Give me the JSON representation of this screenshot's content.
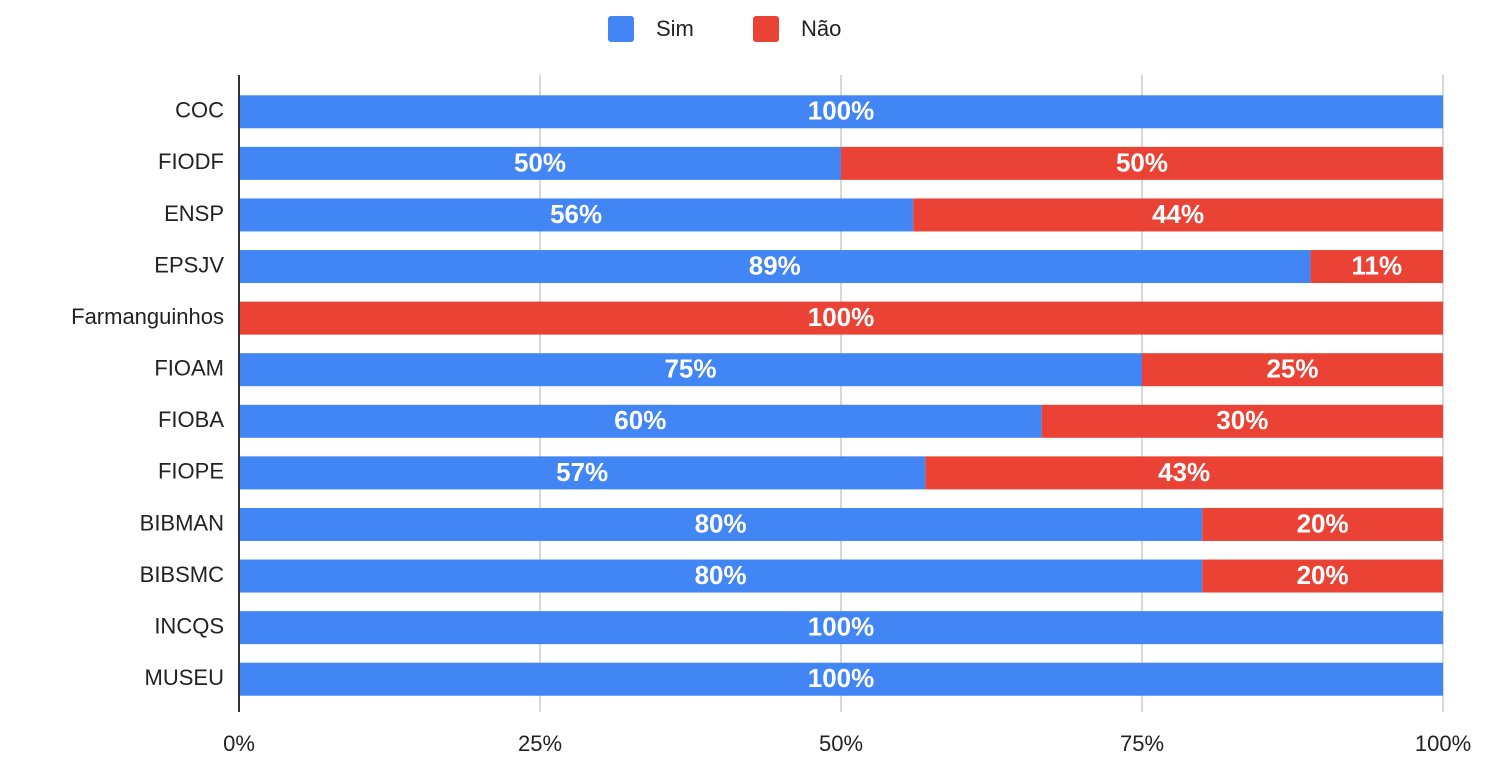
{
  "chart_data": {
    "type": "bar",
    "orientation": "horizontal",
    "stack": "percent",
    "categories": [
      "COC",
      "FIODF",
      "ENSP",
      "EPSJV",
      "Farmanguinhos",
      "FIOAM",
      "FIOBA",
      "FIOPE",
      "BIBMAN",
      "BIBSMC",
      "INCQS",
      "MUSEU"
    ],
    "series": [
      {
        "name": "Sim",
        "color": "#4285f4",
        "values": [
          100,
          50,
          56,
          89,
          null,
          75,
          60,
          57,
          80,
          80,
          100,
          100
        ],
        "value_labels": [
          "100%",
          "50%",
          "56%",
          "89%",
          null,
          "75%",
          "60%",
          "57%",
          "80%",
          "80%",
          "100%",
          "100%"
        ]
      },
      {
        "name": "Não",
        "color": "#ea4335",
        "values": [
          null,
          50,
          44,
          11,
          100,
          25,
          30,
          43,
          20,
          20,
          null,
          null
        ],
        "value_labels": [
          null,
          "50%",
          "44%",
          "11%",
          "100%",
          "25%",
          "30%",
          "43%",
          "20%",
          "20%",
          null,
          null
        ]
      }
    ],
    "xlim": [
      0,
      100
    ],
    "xticks": [
      {
        "value": 0,
        "label": "0%"
      },
      {
        "value": 25,
        "label": "25%"
      },
      {
        "value": 50,
        "label": "50%"
      },
      {
        "value": 75,
        "label": "75%"
      },
      {
        "value": 100,
        "label": "100%"
      }
    ],
    "grid": true,
    "legend": "top"
  }
}
